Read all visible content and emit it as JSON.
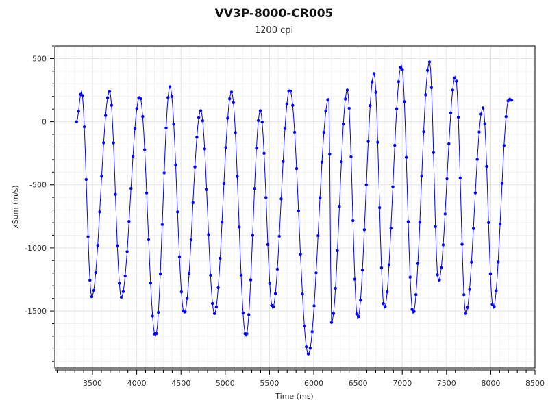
{
  "chart_data": {
    "type": "line",
    "title": "VV3P-8000-CR005",
    "subtitle": "1200 cpi",
    "xlabel": "Time (ms)",
    "ylabel": "xSum (m/s)",
    "xlim": [
      3074,
      8500
    ],
    "ylim": [
      -1950,
      600
    ],
    "xticks": [
      3500,
      4000,
      4500,
      5000,
      5500,
      6000,
      6500,
      7000,
      7500,
      8000,
      8500
    ],
    "yticks": [
      500,
      0,
      -500,
      -1000,
      -1500
    ],
    "grid": true,
    "markers": true,
    "series_color": "#0000ff",
    "series": [
      {
        "x": [
          3320,
          3376,
          3492,
          3693,
          3825,
          4034,
          4212,
          4375,
          4537,
          4723,
          4878,
          5071,
          5234,
          5396,
          5535,
          5729,
          5938,
          6170,
          6201,
          6379,
          6496,
          6681,
          6797,
          6991,
          7122,
          7308,
          7409,
          7602,
          7718,
          7912,
          8028,
          8206,
          8237
        ],
        "y": [
          0,
          239,
          -1386,
          239,
          -1390,
          200,
          -1700,
          277,
          -1520,
          87,
          -1520,
          234,
          -1700,
          87,
          -1478,
          255,
          -1840,
          185,
          -1590,
          250,
          -1560,
          380,
          -1478,
          446,
          -1520,
          473,
          -1266,
          359,
          -1520,
          109,
          -1480,
          180,
          170
        ]
      }
    ]
  }
}
